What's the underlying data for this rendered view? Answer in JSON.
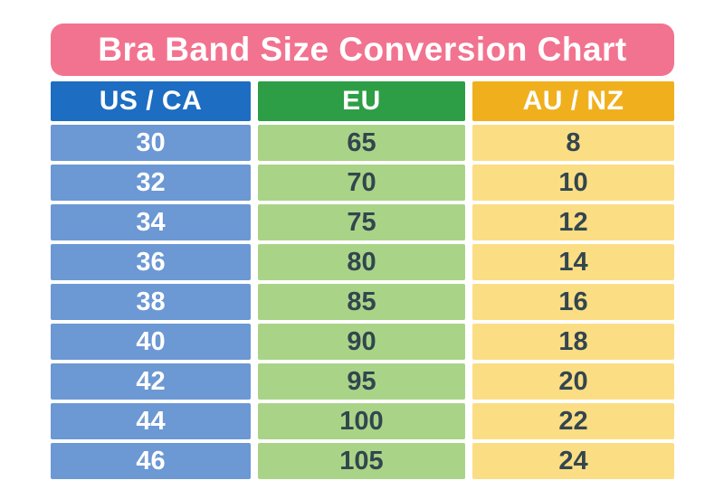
{
  "chart_data": {
    "type": "table",
    "title": "Bra Band Size Conversion Chart",
    "columns": [
      "US / CA",
      "EU",
      "AU / NZ"
    ],
    "rows": [
      [
        "30",
        "65",
        "8"
      ],
      [
        "32",
        "70",
        "10"
      ],
      [
        "34",
        "75",
        "12"
      ],
      [
        "36",
        "80",
        "14"
      ],
      [
        "38",
        "85",
        "16"
      ],
      [
        "40",
        "90",
        "18"
      ],
      [
        "42",
        "95",
        "20"
      ],
      [
        "44",
        "100",
        "22"
      ],
      [
        "46",
        "105",
        "24"
      ]
    ]
  },
  "colors": {
    "page-bg": "#FFFFFF",
    "title-bg": "#F2738F",
    "title-text": "#FFFFFF",
    "header-us-bg": "#1D6DC2",
    "header-eu-bg": "#2D9E46",
    "header-aunz-bg": "#F0B01E",
    "header-text": "#FFFFFF",
    "cell-us-bg": "#6C98D4",
    "cell-eu-bg": "#A9D488",
    "cell-aunz-bg": "#FBDD84",
    "cell-us-text": "#FFFFFF",
    "cell-dark-text": "#33464E"
  }
}
